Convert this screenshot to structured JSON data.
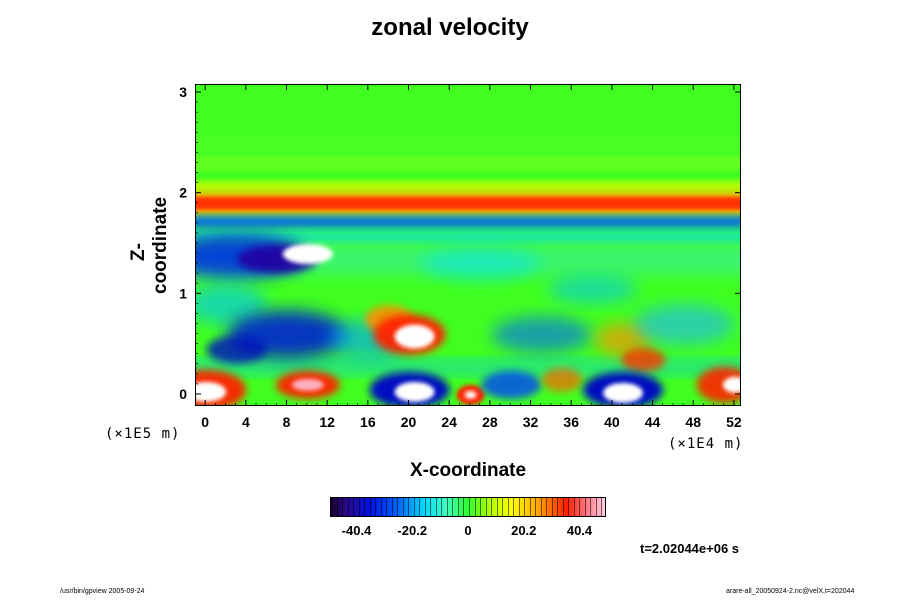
{
  "chart_data": {
    "type": "heatmap",
    "title": "zonal velocity",
    "xlabel": "X-coordinate",
    "ylabel": "Z-coordinate",
    "x_unit": "(×1E4 m)",
    "y_unit": "(×1E5 m)",
    "xlim": [
      -1,
      52.7
    ],
    "ylim": [
      -0.12,
      3.08
    ],
    "x_ticks": [
      "0",
      "4",
      "8",
      "12",
      "16",
      "20",
      "24",
      "28",
      "32",
      "36",
      "40",
      "44",
      "48",
      "52"
    ],
    "x_tick_values": [
      0,
      4,
      8,
      12,
      16,
      20,
      24,
      28,
      32,
      36,
      40,
      44,
      48,
      52
    ],
    "y_ticks": [
      "0",
      "1",
      "2",
      "3"
    ],
    "y_tick_values": [
      0,
      1,
      2,
      3
    ],
    "colorbar": {
      "range": [
        -50,
        50
      ],
      "tick_labels": [
        "-40.4",
        "-20.2",
        "0",
        "20.2",
        "40.4"
      ],
      "tick_values": [
        -40.4,
        -20.2,
        0,
        20.2,
        40.4
      ]
    },
    "colors": {
      "background_field": "#40ff20",
      "jet_core": "#ff3000",
      "jet_edge": "#ffd000",
      "negative_layer": "#0030ff",
      "strong_positive": "#ff90a0",
      "extreme": "#ffffff"
    },
    "features": [
      {
        "kind": "band",
        "z_center": 1.9,
        "value": 40
      },
      {
        "kind": "band",
        "z_center": 1.72,
        "value": -25
      },
      {
        "kind": "blob",
        "x": 6,
        "z": 1.35,
        "value": -45
      },
      {
        "kind": "blob",
        "x": 8,
        "z": 0.6,
        "value": -40
      },
      {
        "kind": "blob",
        "x": 20,
        "z": 0.6,
        "value": 48
      },
      {
        "kind": "blob",
        "x": 0,
        "z": 0.05,
        "value": 45
      },
      {
        "kind": "blob",
        "x": 10,
        "z": 0.1,
        "value": 48
      },
      {
        "kind": "blob",
        "x": 20,
        "z": 0.02,
        "value": -50
      },
      {
        "kind": "blob",
        "x": 26,
        "z": 0.0,
        "value": 45
      },
      {
        "kind": "blob",
        "x": 41,
        "z": 0.0,
        "value": -50
      },
      {
        "kind": "blob",
        "x": 51,
        "z": 0.1,
        "value": 45
      },
      {
        "kind": "blob",
        "x": 43,
        "z": 0.5,
        "value": 35
      }
    ]
  },
  "annotations": {
    "time": "t=2.02044e+06 s",
    "footer_left": "/usr/bin/gpview 2005-09-24",
    "footer_right": "arare-all_20050924-2.nc@velX,t=202044"
  }
}
